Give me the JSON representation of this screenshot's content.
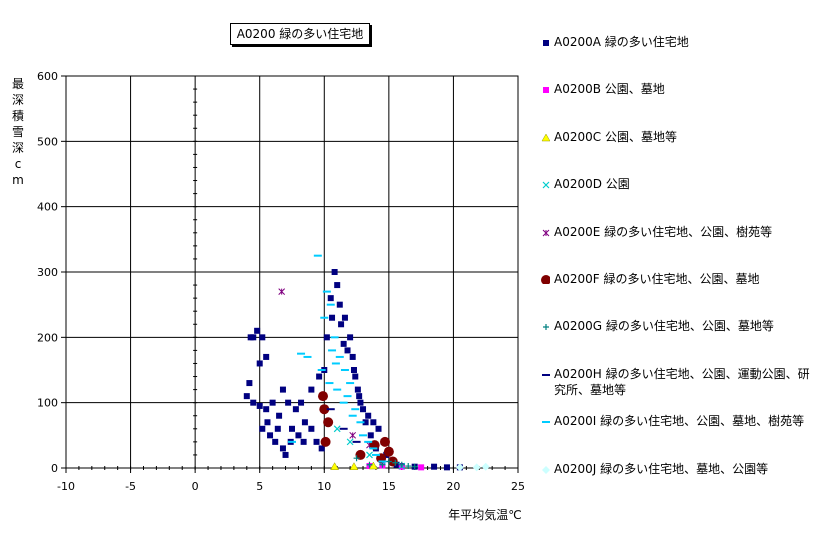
{
  "chart_data": {
    "type": "scatter",
    "title": "A0200 緑の多い住宅地",
    "xlabel": "年平均気温℃",
    "ylabel": "最深積雪深cm",
    "xlim": [
      -10,
      25
    ],
    "ylim": [
      0,
      600
    ],
    "xticks": [
      "-10",
      "-5",
      "0",
      "5",
      "10",
      "15",
      "20",
      "25"
    ],
    "yticks": [
      "0",
      "100",
      "200",
      "300",
      "400",
      "500",
      "600"
    ],
    "grid": true,
    "legend_position": "right",
    "series": [
      {
        "name": "A0200A 緑の多い住宅地",
        "marker": "square",
        "color": "#000080",
        "points": [
          [
            4.3,
            200
          ],
          [
            4.5,
            200
          ],
          [
            4.8,
            210
          ],
          [
            5.2,
            200
          ],
          [
            5.5,
            170
          ],
          [
            5.0,
            160
          ],
          [
            4.2,
            130
          ],
          [
            4.0,
            110
          ],
          [
            4.5,
            100
          ],
          [
            5.0,
            95
          ],
          [
            5.5,
            90
          ],
          [
            6.0,
            100
          ],
          [
            6.5,
            80
          ],
          [
            5.2,
            60
          ],
          [
            5.8,
            50
          ],
          [
            6.2,
            40
          ],
          [
            6.8,
            30
          ],
          [
            7.0,
            20
          ],
          [
            7.5,
            60
          ],
          [
            8.0,
            50
          ],
          [
            8.4,
            40
          ],
          [
            6.8,
            120
          ],
          [
            7.2,
            100
          ],
          [
            7.8,
            90
          ],
          [
            8.5,
            70
          ],
          [
            9.0,
            60
          ],
          [
            9.4,
            40
          ],
          [
            9.8,
            30
          ],
          [
            9.0,
            120
          ],
          [
            9.6,
            140
          ],
          [
            10.0,
            150
          ],
          [
            10.2,
            200
          ],
          [
            10.5,
            260
          ],
          [
            10.8,
            300
          ],
          [
            11.0,
            280
          ],
          [
            11.2,
            250
          ],
          [
            11.6,
            230
          ],
          [
            12.0,
            200
          ],
          [
            12.2,
            170
          ],
          [
            12.4,
            140
          ],
          [
            12.6,
            120
          ],
          [
            12.8,
            100
          ],
          [
            13.0,
            90
          ],
          [
            13.4,
            80
          ],
          [
            13.8,
            70
          ],
          [
            14.2,
            60
          ],
          [
            14.6,
            40
          ],
          [
            14.8,
            20
          ],
          [
            15.2,
            10
          ],
          [
            15.6,
            5
          ],
          [
            16.0,
            3
          ],
          [
            17.0,
            2
          ],
          [
            18.5,
            2
          ],
          [
            19.5,
            1
          ],
          [
            20.5,
            1
          ],
          [
            5.6,
            70
          ],
          [
            6.4,
            60
          ],
          [
            7.4,
            40
          ],
          [
            8.2,
            100
          ],
          [
            11.3,
            220
          ],
          [
            11.8,
            180
          ],
          [
            12.3,
            150
          ],
          [
            10.6,
            230
          ],
          [
            11.5,
            190
          ],
          [
            12.7,
            110
          ],
          [
            13.2,
            70
          ],
          [
            13.6,
            50
          ],
          [
            14.0,
            30
          ],
          [
            14.4,
            15
          ]
        ]
      },
      {
        "name": "A0200B 公園、墓地",
        "marker": "square",
        "color": "#ff00ff",
        "points": [
          [
            17.5,
            1
          ],
          [
            16.0,
            2
          ],
          [
            14.5,
            4
          ],
          [
            13.5,
            3
          ]
        ]
      },
      {
        "name": "A0200C 公園、墓地等",
        "marker": "triangle",
        "color": "#ffff00",
        "points": [
          [
            12.3,
            2
          ],
          [
            10.8,
            2
          ],
          [
            13.8,
            3
          ]
        ]
      },
      {
        "name": "A0200D 公園",
        "marker": "x",
        "color": "#00cccc",
        "points": [
          [
            11.0,
            60
          ],
          [
            12.0,
            40
          ],
          [
            13.5,
            20
          ],
          [
            14.5,
            10
          ],
          [
            16.0,
            3
          ]
        ]
      },
      {
        "name": "A0200E 緑の多い住宅地、公園、樹苑等",
        "marker": "asterisk",
        "color": "#800080",
        "points": [
          [
            6.7,
            270
          ],
          [
            12.2,
            50
          ],
          [
            13.5,
            35
          ]
        ]
      },
      {
        "name": "A0200F 緑の多い住宅地、公園、墓地",
        "marker": "circle",
        "color": "#800000",
        "points": [
          [
            9.9,
            110
          ],
          [
            10.0,
            90
          ],
          [
            10.3,
            70
          ],
          [
            10.1,
            40
          ],
          [
            12.8,
            20
          ],
          [
            13.9,
            35
          ],
          [
            14.7,
            40
          ],
          [
            15.0,
            25
          ],
          [
            14.4,
            15
          ],
          [
            15.3,
            10
          ]
        ]
      },
      {
        "name": "A0200G 緑の多い住宅地、公園、墓地等",
        "marker": "plus",
        "color": "#008080",
        "points": [
          [
            14.5,
            5
          ],
          [
            15.0,
            10
          ],
          [
            15.5,
            8
          ],
          [
            16.0,
            5
          ],
          [
            13.5,
            5
          ],
          [
            12.5,
            15
          ],
          [
            16.5,
            3
          ],
          [
            17.0,
            2
          ]
        ]
      },
      {
        "name": "A0200H 緑の多い住宅地、公園、運動公園、研究所、墓地等",
        "marker": "dash",
        "color": "#000080",
        "points": [
          [
            10.5,
            90
          ],
          [
            11.5,
            60
          ],
          [
            12.5,
            40
          ]
        ]
      },
      {
        "name": "A0200I 緑の多い住宅地、公園、墓地、樹苑等",
        "marker": "dash",
        "color": "#00ccff",
        "points": [
          [
            9.5,
            325
          ],
          [
            10.2,
            270
          ],
          [
            10.5,
            250
          ],
          [
            10.0,
            230
          ],
          [
            10.8,
            200
          ],
          [
            11.2,
            170
          ],
          [
            11.6,
            150
          ],
          [
            12.0,
            130
          ],
          [
            11.0,
            120
          ],
          [
            11.5,
            100
          ],
          [
            12.4,
            90
          ],
          [
            12.8,
            70
          ],
          [
            13.0,
            50
          ],
          [
            13.4,
            40
          ],
          [
            13.8,
            30
          ],
          [
            14.0,
            20
          ],
          [
            10.6,
            180
          ],
          [
            11.8,
            110
          ],
          [
            10.9,
            160
          ],
          [
            12.2,
            80
          ],
          [
            9.8,
            150
          ],
          [
            10.4,
            130
          ],
          [
            8.2,
            175
          ],
          [
            8.7,
            170
          ],
          [
            7.5,
            40
          ],
          [
            14.5,
            10
          ]
        ]
      },
      {
        "name": "A0200J 緑の多い住宅地、墓地、公園等",
        "marker": "diamond",
        "color": "#ccffff",
        "points": [
          [
            22.5,
            2
          ],
          [
            21.8,
            1
          ],
          [
            20.5,
            1
          ]
        ]
      }
    ]
  }
}
